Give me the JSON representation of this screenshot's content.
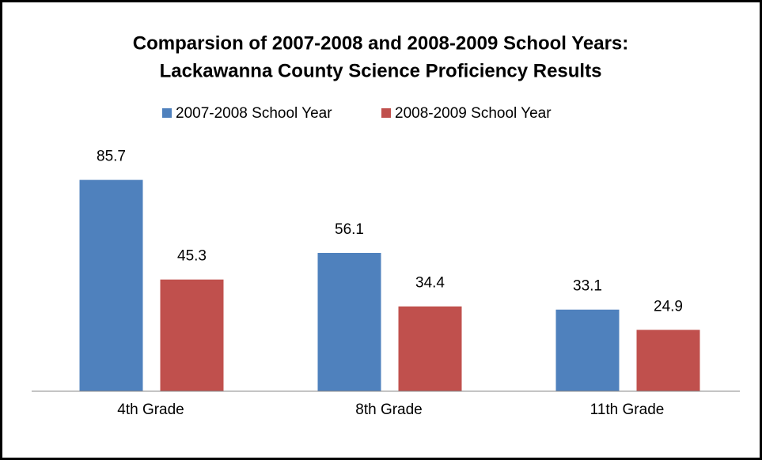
{
  "chart_data": {
    "type": "bar",
    "title": [
      "Comparsion of 2007-2008 and 2008-2009 School Years:",
      "Lackawanna County Science Proficiency Results"
    ],
    "categories": [
      "4th Grade",
      "8th Grade",
      "11th Grade"
    ],
    "series": [
      {
        "name": "2007-2008 School Year",
        "color": "#4f81bd",
        "values": [
          85.7,
          56.1,
          33.1
        ]
      },
      {
        "name": "2008-2009 School Year",
        "color": "#c0504d",
        "values": [
          45.3,
          34.4,
          24.9
        ]
      }
    ],
    "ylim": [
      0,
      100
    ],
    "legend": "top"
  }
}
